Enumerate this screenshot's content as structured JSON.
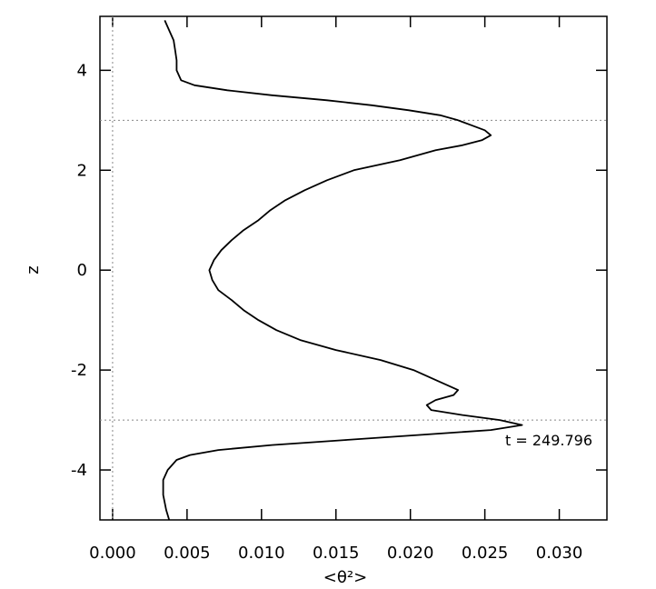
{
  "chart_data": {
    "type": "line",
    "xlabel": "<θ²>",
    "ylabel": "z",
    "annotation": "t = 249.796",
    "xlim": [
      -0.00085,
      0.0332
    ],
    "ylim": [
      -5.0,
      5.08
    ],
    "xticks": [
      {
        "value": 0,
        "label": "0.000"
      },
      {
        "value": 0.005,
        "label": "0.005"
      },
      {
        "value": 0.01,
        "label": "0.010"
      },
      {
        "value": 0.015,
        "label": "0.015"
      },
      {
        "value": 0.02,
        "label": "0.020"
      },
      {
        "value": 0.025,
        "label": "0.025"
      },
      {
        "value": 0.03,
        "label": "0.030"
      }
    ],
    "yticks": [
      -4,
      -2,
      0,
      2,
      4
    ],
    "hlines": [
      3,
      -3
    ],
    "vlines": [
      0
    ],
    "series": [
      {
        "color": "#000000",
        "y": [
          5.0,
          4.8,
          4.6,
          4.4,
          4.2,
          4.0,
          3.8,
          3.7,
          3.6,
          3.5,
          3.4,
          3.3,
          3.2,
          3.1,
          3.0,
          2.9,
          2.8,
          2.7,
          2.6,
          2.5,
          2.4,
          2.2,
          2.0,
          1.8,
          1.6,
          1.4,
          1.2,
          1.0,
          0.8,
          0.6,
          0.4,
          0.2,
          0.0,
          -0.2,
          -0.4,
          -0.6,
          -0.8,
          -1.0,
          -1.2,
          -1.4,
          -1.6,
          -1.8,
          -2.0,
          -2.2,
          -2.4,
          -2.5,
          -2.6,
          -2.7,
          -2.8,
          -2.9,
          -3.0,
          -3.1,
          -3.2,
          -3.3,
          -3.4,
          -3.5,
          -3.6,
          -3.7,
          -3.8,
          -4.0,
          -4.2,
          -4.5,
          -4.8,
          -5.0
        ],
        "values": [
          0.0035,
          0.0038,
          0.0041,
          0.0042,
          0.0043,
          0.0043,
          0.0046,
          0.0055,
          0.0077,
          0.0107,
          0.0144,
          0.0174,
          0.0199,
          0.022,
          0.0232,
          0.0241,
          0.025,
          0.0254,
          0.0248,
          0.0235,
          0.0217,
          0.0193,
          0.0162,
          0.0144,
          0.0129,
          0.0116,
          0.0106,
          0.0098,
          0.0088,
          0.008,
          0.0073,
          0.0068,
          0.0065,
          0.0067,
          0.0071,
          0.008,
          0.0088,
          0.0098,
          0.011,
          0.0126,
          0.015,
          0.018,
          0.0202,
          0.0217,
          0.0232,
          0.0229,
          0.0217,
          0.0211,
          0.0214,
          0.0235,
          0.026,
          0.0275,
          0.0254,
          0.0205,
          0.0156,
          0.0107,
          0.0071,
          0.0052,
          0.0043,
          0.0037,
          0.0034,
          0.0034,
          0.0036,
          0.0038
        ]
      }
    ]
  }
}
